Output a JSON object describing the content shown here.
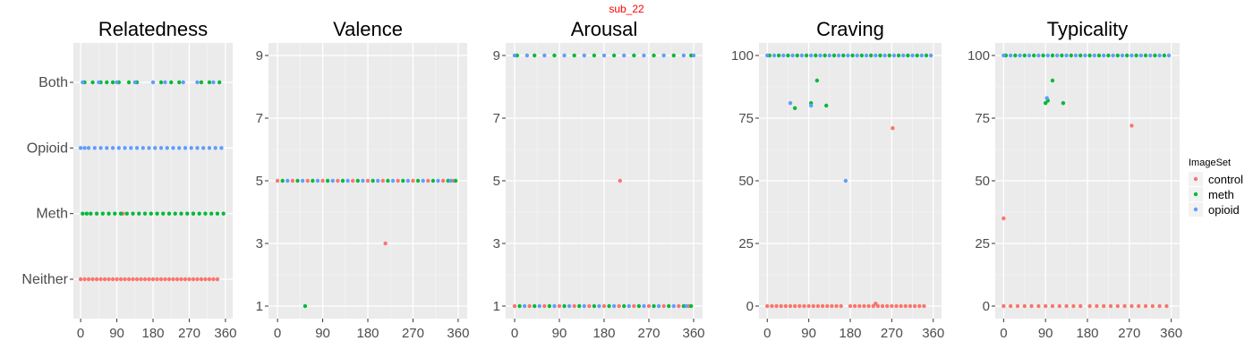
{
  "figure": {
    "suptitle": "sub_22",
    "suptitle_color": "#ff0000"
  },
  "legend": {
    "title": "ImageSet",
    "placement": "right",
    "items": [
      {
        "label": "control",
        "color": "#F8766D"
      },
      {
        "label": "meth",
        "color": "#00BA38"
      },
      {
        "label": "opioid",
        "color": "#619CFF"
      }
    ]
  },
  "chart_data": [
    {
      "type": "scatter",
      "title": "Relatedness",
      "x_ticks": [
        0,
        90,
        180,
        270,
        360
      ],
      "xlim": [
        0,
        360
      ],
      "y_categories": [
        "Neither",
        "Meth",
        "Opioid",
        "Both"
      ],
      "grid": true,
      "series": [
        {
          "name": "control",
          "x": [
            0,
            160,
            170,
            180,
            190,
            200,
            210,
            220,
            230,
            240,
            250,
            260,
            270,
            280,
            290,
            300,
            310,
            320,
            330,
            340,
            10,
            20,
            30,
            40,
            50,
            60,
            70,
            80,
            90,
            100,
            110,
            120,
            130,
            140,
            150,
            105,
            280
          ],
          "y": [
            "Neither",
            "Neither",
            "Neither",
            "Neither",
            "Neither",
            "Neither",
            "Neither",
            "Neither",
            "Neither",
            "Neither",
            "Neither",
            "Neither",
            "Neither",
            "Neither",
            "Neither",
            "Neither",
            "Neither",
            "Neither",
            "Neither",
            "Neither",
            "Neither",
            "Neither",
            "Neither",
            "Neither",
            "Neither",
            "Neither",
            "Neither",
            "Neither",
            "Neither",
            "Neither",
            "Neither",
            "Neither",
            "Neither",
            "Neither",
            "Neither",
            "Meth",
            "Meth"
          ]
        },
        {
          "name": "meth",
          "x": [
            5,
            15,
            25,
            40,
            55,
            70,
            85,
            100,
            115,
            130,
            145,
            160,
            175,
            190,
            205,
            220,
            235,
            250,
            265,
            280,
            295,
            310,
            325,
            340,
            355,
            10,
            30,
            50,
            65,
            80,
            95,
            120,
            140,
            200,
            225,
            245,
            300,
            320,
            345
          ],
          "y": [
            "Meth",
            "Meth",
            "Meth",
            "Meth",
            "Meth",
            "Meth",
            "Meth",
            "Meth",
            "Meth",
            "Meth",
            "Meth",
            "Meth",
            "Meth",
            "Meth",
            "Meth",
            "Meth",
            "Meth",
            "Meth",
            "Meth",
            "Meth",
            "Meth",
            "Meth",
            "Meth",
            "Meth",
            "Meth",
            "Both",
            "Both",
            "Both",
            "Both",
            "Both",
            "Both",
            "Both",
            "Both",
            "Both",
            "Both",
            "Both",
            "Both",
            "Both",
            "Both"
          ]
        },
        {
          "name": "opioid",
          "x": [
            0,
            10,
            20,
            35,
            50,
            65,
            80,
            95,
            110,
            125,
            140,
            155,
            170,
            185,
            200,
            215,
            230,
            245,
            260,
            275,
            290,
            305,
            320,
            335,
            350,
            5,
            45,
            90,
            135,
            180,
            210,
            255,
            290,
            330
          ],
          "y": [
            "Opioid",
            "Opioid",
            "Opioid",
            "Opioid",
            "Opioid",
            "Opioid",
            "Opioid",
            "Opioid",
            "Opioid",
            "Opioid",
            "Opioid",
            "Opioid",
            "Opioid",
            "Opioid",
            "Opioid",
            "Opioid",
            "Opioid",
            "Opioid",
            "Opioid",
            "Opioid",
            "Opioid",
            "Opioid",
            "Opioid",
            "Opioid",
            "Opioid",
            "Both",
            "Both",
            "Both",
            "Both",
            "Both",
            "Both",
            "Both",
            "Both",
            "Both"
          ]
        }
      ]
    },
    {
      "type": "scatter",
      "title": "Valence",
      "x_ticks": [
        0,
        90,
        180,
        270,
        360
      ],
      "xlim": [
        0,
        360
      ],
      "y_ticks": [
        1,
        3,
        5,
        7,
        9
      ],
      "ylim": [
        1,
        9
      ],
      "grid": true,
      "series": [
        {
          "name": "control",
          "x": [
            0,
            30,
            60,
            90,
            120,
            150,
            180,
            210,
            240,
            270,
            300,
            330,
            350,
            215
          ],
          "y": [
            5,
            5,
            5,
            5,
            5,
            5,
            5,
            5,
            5,
            5,
            5,
            5,
            5,
            3
          ]
        },
        {
          "name": "meth",
          "x": [
            10,
            40,
            70,
            100,
            130,
            160,
            190,
            220,
            250,
            280,
            310,
            340,
            355,
            55
          ],
          "y": [
            5,
            5,
            5,
            5,
            5,
            5,
            5,
            5,
            5,
            5,
            5,
            5,
            5,
            1
          ]
        },
        {
          "name": "opioid",
          "x": [
            20,
            50,
            80,
            110,
            140,
            170,
            200,
            230,
            260,
            290,
            320,
            345
          ],
          "y": [
            5,
            5,
            5,
            5,
            5,
            5,
            5,
            5,
            5,
            5,
            5,
            5
          ]
        }
      ]
    },
    {
      "type": "scatter",
      "title": "Arousal",
      "x_ticks": [
        0,
        90,
        180,
        270,
        360
      ],
      "xlim": [
        0,
        360
      ],
      "y_ticks": [
        1,
        3,
        5,
        7,
        9
      ],
      "ylim": [
        1,
        9
      ],
      "grid": true,
      "series": [
        {
          "name": "control",
          "x": [
            0,
            30,
            60,
            90,
            120,
            150,
            180,
            210,
            240,
            270,
            300,
            330,
            350,
            212
          ],
          "y": [
            1,
            1,
            1,
            1,
            1,
            1,
            1,
            1,
            1,
            1,
            1,
            1,
            1,
            5
          ]
        },
        {
          "name": "meth",
          "x": [
            10,
            40,
            70,
            100,
            130,
            160,
            190,
            220,
            250,
            280,
            310,
            340,
            355,
            5,
            40,
            80,
            120,
            160,
            200,
            240,
            280,
            320,
            355
          ],
          "y": [
            1,
            1,
            1,
            1,
            1,
            1,
            1,
            1,
            1,
            1,
            1,
            1,
            1,
            9,
            9,
            9,
            9,
            9,
            9,
            9,
            9,
            9,
            9
          ]
        },
        {
          "name": "opioid",
          "x": [
            20,
            50,
            80,
            110,
            140,
            170,
            200,
            230,
            260,
            290,
            320,
            345,
            0,
            25,
            60,
            100,
            140,
            180,
            220,
            260,
            300,
            340,
            360
          ],
          "y": [
            1,
            1,
            1,
            1,
            1,
            1,
            1,
            1,
            1,
            1,
            1,
            1,
            9,
            9,
            9,
            9,
            9,
            9,
            9,
            9,
            9,
            9,
            9
          ]
        }
      ]
    },
    {
      "type": "scatter",
      "title": "Craving",
      "x_ticks": [
        0,
        90,
        180,
        270,
        360
      ],
      "xlim": [
        0,
        360
      ],
      "y_ticks": [
        0,
        25,
        50,
        75,
        100
      ],
      "ylim": [
        0,
        100
      ],
      "grid": true,
      "series": [
        {
          "name": "control",
          "x": [
            0,
            10,
            20,
            30,
            40,
            50,
            60,
            70,
            80,
            90,
            100,
            110,
            120,
            130,
            140,
            150,
            160,
            180,
            190,
            200,
            210,
            220,
            230,
            235,
            240,
            250,
            260,
            270,
            280,
            290,
            300,
            310,
            320,
            330,
            340,
            272
          ],
          "y": [
            0,
            0,
            0,
            0,
            0,
            0,
            0,
            0,
            0,
            0,
            0,
            0,
            0,
            0,
            0,
            0,
            0,
            0,
            0,
            0,
            0,
            0,
            0,
            1,
            0,
            0,
            0,
            0,
            0,
            0,
            0,
            0,
            0,
            0,
            0,
            71
          ]
        },
        {
          "name": "meth",
          "x": [
            5,
            25,
            45,
            65,
            85,
            105,
            125,
            145,
            165,
            185,
            205,
            225,
            245,
            265,
            285,
            305,
            325,
            345,
            60,
            95,
            108,
            128
          ],
          "y": [
            100,
            100,
            100,
            100,
            100,
            100,
            100,
            100,
            100,
            100,
            100,
            100,
            100,
            100,
            100,
            100,
            100,
            100,
            79,
            81,
            90,
            80
          ]
        },
        {
          "name": "opioid",
          "x": [
            0,
            15,
            35,
            55,
            75,
            95,
            115,
            135,
            155,
            175,
            195,
            215,
            235,
            255,
            275,
            295,
            315,
            335,
            355,
            50,
            95,
            170
          ],
          "y": [
            100,
            100,
            100,
            100,
            100,
            100,
            100,
            100,
            100,
            100,
            100,
            100,
            100,
            100,
            100,
            100,
            100,
            100,
            100,
            81,
            80,
            50
          ]
        }
      ]
    },
    {
      "type": "scatter",
      "title": "Typicality",
      "x_ticks": [
        0,
        90,
        180,
        270,
        360
      ],
      "xlim": [
        0,
        360
      ],
      "y_ticks": [
        0,
        25,
        50,
        75,
        100
      ],
      "ylim": [
        0,
        100
      ],
      "grid": true,
      "series": [
        {
          "name": "control",
          "x": [
            0,
            15,
            30,
            45,
            60,
            75,
            90,
            105,
            120,
            135,
            150,
            165,
            185,
            200,
            215,
            230,
            245,
            260,
            275,
            290,
            305,
            320,
            335,
            350,
            0,
            275
          ],
          "y": [
            0,
            0,
            0,
            0,
            0,
            0,
            0,
            0,
            0,
            0,
            0,
            0,
            0,
            0,
            0,
            0,
            0,
            0,
            0,
            0,
            0,
            0,
            0,
            0,
            35,
            72
          ]
        },
        {
          "name": "meth",
          "x": [
            5,
            25,
            45,
            65,
            85,
            105,
            125,
            145,
            165,
            185,
            205,
            225,
            245,
            265,
            285,
            305,
            325,
            345,
            90,
            95,
            105,
            128
          ],
          "y": [
            100,
            100,
            100,
            100,
            100,
            100,
            100,
            100,
            100,
            100,
            100,
            100,
            100,
            100,
            100,
            100,
            100,
            100,
            81,
            82,
            90,
            81
          ]
        },
        {
          "name": "opioid",
          "x": [
            0,
            15,
            35,
            55,
            75,
            95,
            115,
            135,
            155,
            175,
            195,
            215,
            235,
            255,
            275,
            295,
            315,
            335,
            355,
            93
          ],
          "y": [
            100,
            100,
            100,
            100,
            100,
            100,
            100,
            100,
            100,
            100,
            100,
            100,
            100,
            100,
            100,
            100,
            100,
            100,
            100,
            83
          ]
        }
      ]
    }
  ]
}
